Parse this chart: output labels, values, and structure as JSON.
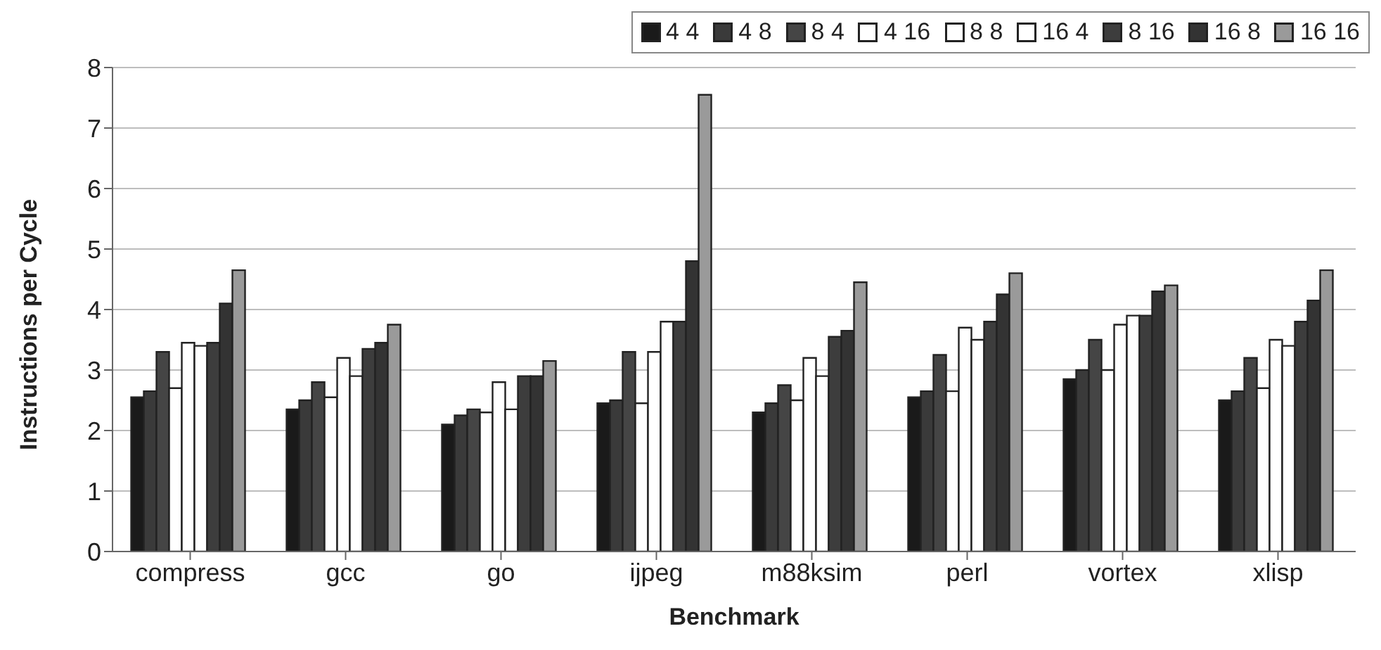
{
  "chart_data": {
    "type": "bar",
    "xlabel": "Benchmark",
    "ylabel": "Instructions per Cycle",
    "categories": [
      "compress",
      "gcc",
      "go",
      "ijpeg",
      "m88ksim",
      "perl",
      "vortex",
      "xlisp"
    ],
    "series": [
      {
        "name": "4 4",
        "color": "#1a1a1a",
        "values": [
          2.55,
          2.35,
          2.1,
          2.45,
          2.3,
          2.55,
          2.85,
          2.5
        ]
      },
      {
        "name": "4 8",
        "color": "#3a3a3a",
        "values": [
          2.65,
          2.5,
          2.25,
          2.5,
          2.45,
          2.65,
          3.0,
          2.65
        ]
      },
      {
        "name": "8 4",
        "color": "#454545",
        "values": [
          3.3,
          2.8,
          2.35,
          3.3,
          2.75,
          3.25,
          3.5,
          3.2
        ]
      },
      {
        "name": "4 16",
        "color": "#ffffff",
        "values": [
          2.7,
          2.55,
          2.3,
          2.45,
          2.5,
          2.65,
          3.0,
          2.7
        ]
      },
      {
        "name": "8 8",
        "color": "#ffffff",
        "values": [
          3.45,
          3.2,
          2.8,
          3.3,
          3.2,
          3.7,
          3.75,
          3.5
        ]
      },
      {
        "name": "16 4",
        "color": "#ffffff",
        "values": [
          3.4,
          2.9,
          2.35,
          3.8,
          2.9,
          3.5,
          3.9,
          3.4
        ]
      },
      {
        "name": "8 16",
        "color": "#3d3d3d",
        "values": [
          3.45,
          3.35,
          2.9,
          3.8,
          3.55,
          3.8,
          3.9,
          3.8
        ]
      },
      {
        "name": "16 8",
        "color": "#333333",
        "values": [
          4.1,
          3.45,
          2.9,
          4.8,
          3.65,
          4.25,
          4.3,
          4.15
        ]
      },
      {
        "name": "16 16",
        "color": "#9a9a9a",
        "values": [
          4.65,
          3.75,
          3.15,
          7.55,
          4.45,
          4.6,
          4.4,
          4.65
        ]
      }
    ],
    "ylim": [
      0,
      8
    ],
    "yticks": [
      0,
      1,
      2,
      3,
      4,
      5,
      6,
      7,
      8
    ],
    "grid": "y",
    "legend": "top right"
  }
}
